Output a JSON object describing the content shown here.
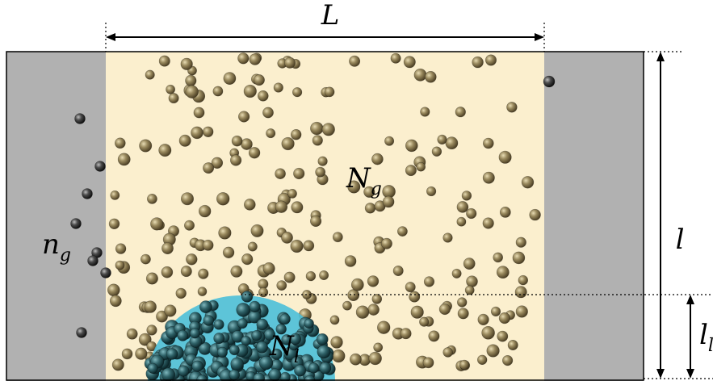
{
  "labels": {
    "top_dimension": "L",
    "right_dimension": "l",
    "right_small_dimension_main": "l",
    "right_small_dimension_sub": "l",
    "gas_left_main": "n",
    "gas_left_sub": "g",
    "gas_center_main": "N",
    "gas_center_sub": "g",
    "liquid_main": "N",
    "liquid_sub": "l"
  },
  "colors": {
    "side_region": "#b1b1b1",
    "center_region": "#fbefce",
    "droplet": "#4bbfd9",
    "particle_gas": "#8a7a52",
    "particle_side": "#3f3f3f",
    "outline": "#000000"
  }
}
